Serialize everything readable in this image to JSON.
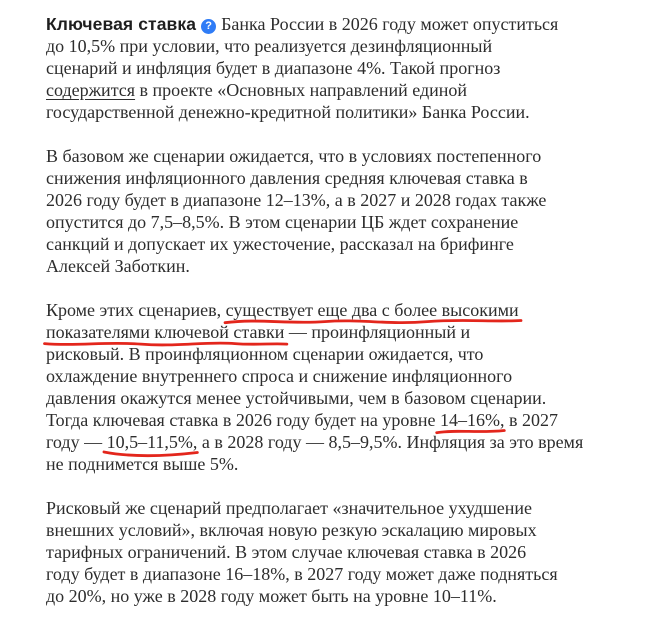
{
  "page": {
    "background_color": "#ffffff",
    "text_color": "#2d2d2d"
  },
  "accents": {
    "help_icon_color": "#2f7cf6",
    "annotation_color": "#e3261c",
    "link_style": "underlined"
  },
  "article": {
    "term": "Ключевая ставка",
    "help_icon_glyph": "?",
    "link_text": "содержится",
    "annotated_phrases": [
      "существует еще два с более высокими показателями ключевой ставки",
      "14–16%",
      "10,5–11,5%"
    ],
    "paragraphs": [
      {
        "lines": [
          [
            {
              "text": "Ключевая ставка",
              "style": "term"
            },
            {
              "type": "icon",
              "name": "help-icon"
            },
            {
              "text": "Банка России в 2026 году может опуститься"
            }
          ],
          [
            {
              "text": "до 10,5% при условии, что реализуется дезинфляционный"
            }
          ],
          [
            {
              "text": "сценарий и инфляция будет в диапазоне 4%. Такой прогноз"
            }
          ],
          [
            {
              "text": "содержится",
              "style": "link"
            },
            {
              "text": " в проекте «Основных направлений единой"
            }
          ],
          [
            {
              "text": "государственной денежно-кредитной политики» Банка России."
            }
          ]
        ]
      },
      {
        "lines": [
          [
            {
              "text": "В базовом же сценарии ожидается, что в условиях постепенного"
            }
          ],
          [
            {
              "text": "снижения инфляционного давления средняя ключевая ставка в"
            }
          ],
          [
            {
              "text": "2026 году будет в диапазоне 12–13%, а в 2027 и 2028 годах также"
            }
          ],
          [
            {
              "text": "опустится до 7,5–8,5%. В этом сценарии ЦБ ждет сохранение"
            }
          ],
          [
            {
              "text": "санкций и допускает их ужесточение, рассказал на брифинге"
            }
          ],
          [
            {
              "text": "Алексей Заботкин."
            }
          ]
        ]
      },
      {
        "lines": [
          [
            {
              "text": "Кроме этих сценариев, "
            },
            {
              "text": "существует еще два с более высокими",
              "style": "marked"
            }
          ],
          [
            {
              "text": "показателями ключевой ставки",
              "style": "marked"
            },
            {
              "text": " — проинфляционный и"
            }
          ],
          [
            {
              "text": "рисковый. В проинфляционном сценарии ожидается, что"
            }
          ],
          [
            {
              "text": "охлаждение внутреннего спроса и снижение инфляционного"
            }
          ],
          [
            {
              "text": "давления окажутся менее устойчивыми, чем в базовом сценарии."
            }
          ],
          [
            {
              "text": "Тогда ключевая ставка в 2026 году будет на уровне "
            },
            {
              "text": "14–16%",
              "style": "marked"
            },
            {
              "text": ", в 2027"
            }
          ],
          [
            {
              "text": "году — "
            },
            {
              "text": "10,5–11,5%",
              "style": "marked"
            },
            {
              "text": ", а в 2028 году — 8,5–9,5%. Инфляция за это время"
            }
          ],
          [
            {
              "text": "не поднимется выше 5%."
            }
          ]
        ]
      },
      {
        "lines": [
          [
            {
              "text": "Рисковый же сценарий предполагает «значительное ухудшение"
            }
          ],
          [
            {
              "text": "внешних условий», включая новую резкую эскалацию мировых"
            }
          ],
          [
            {
              "text": "тарифных ограничений. В этом случае ключевая ставка в 2026"
            }
          ],
          [
            {
              "text": "году будет в диапазоне 16–18%, в 2027 году может даже подняться"
            }
          ],
          [
            {
              "text": "до 20%, но уже в 2028 году может быть на уровне 10–11%."
            }
          ]
        ]
      }
    ]
  }
}
